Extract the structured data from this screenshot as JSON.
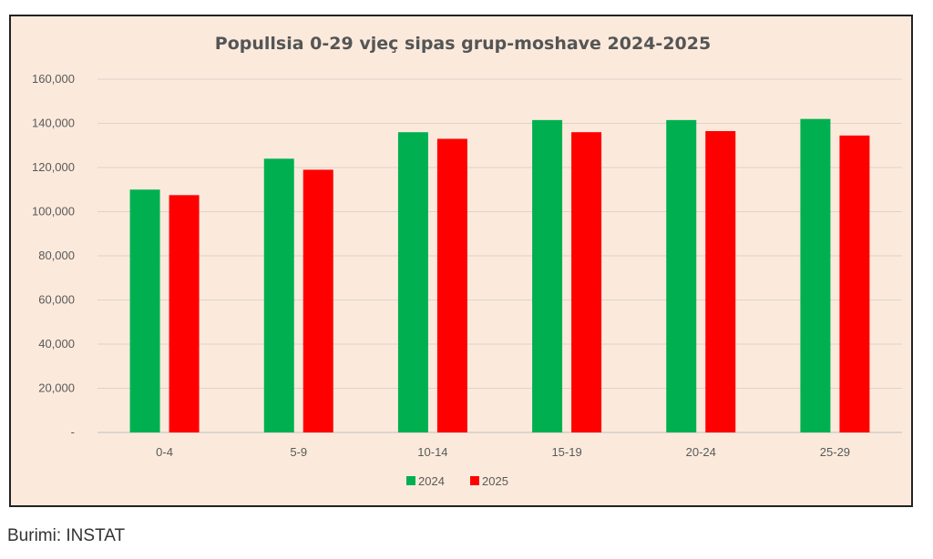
{
  "chart_data": {
    "type": "bar",
    "title": "Popullsia 0-29 vjeç sipas grup-moshave 2024-2025",
    "categories": [
      "0-4",
      "5-9",
      "10-14",
      "15-19",
      "20-24",
      "25-29"
    ],
    "series": [
      {
        "name": "2024",
        "color": "#00b050",
        "values": [
          110000,
          124000,
          136000,
          141500,
          141500,
          142000
        ]
      },
      {
        "name": "2025",
        "color": "#ff0000",
        "values": [
          107500,
          119000,
          133000,
          136000,
          136500,
          134500
        ]
      }
    ],
    "ylim": [
      0,
      160000
    ],
    "yticks": [
      0,
      20000,
      40000,
      60000,
      80000,
      100000,
      120000,
      140000,
      160000
    ],
    "ytick_labels": [
      "-",
      "20,000",
      "40,000",
      "60,000",
      "80,000",
      "100,000",
      "120,000",
      "140,000",
      "160,000"
    ],
    "grid": true,
    "legend": "bottom-center",
    "background": "#fbeadc"
  },
  "source_text": "Burimi: INSTAT"
}
